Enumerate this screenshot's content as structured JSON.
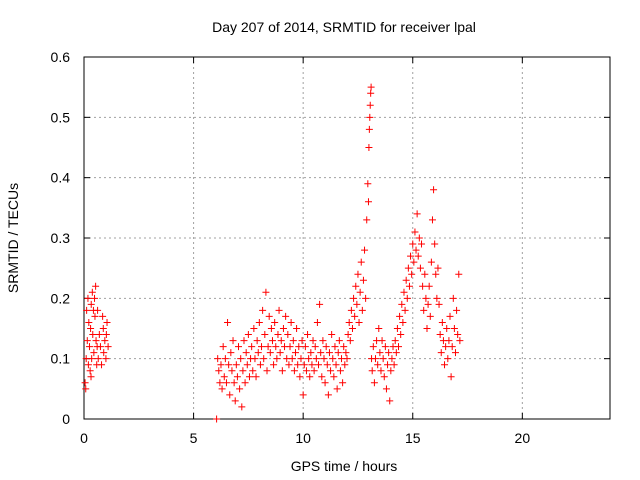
{
  "chart_data": {
    "type": "scatter",
    "title": "Day 207 of 2014, SRMTID for receiver lpal",
    "xlabel": "GPS time / hours",
    "ylabel": "SRMTID / TECUs",
    "xlim": [
      0,
      24
    ],
    "ylim": [
      0,
      0.6
    ],
    "xticks": [
      0,
      5,
      10,
      15,
      20
    ],
    "yticks": [
      0,
      0.1,
      0.2,
      0.3,
      0.4,
      0.5,
      0.6
    ],
    "xtick_labels": [
      "0",
      "5",
      "10",
      "15",
      "20"
    ],
    "ytick_labels": [
      "0",
      "0.1",
      "0.2",
      "0.3",
      "0.4",
      "0.5",
      "0.6"
    ],
    "grid": true,
    "marker": "+",
    "color": "#ff0000",
    "series": [
      {
        "name": "SRMTID",
        "points": [
          [
            0.05,
            0.06
          ],
          [
            0.1,
            0.1
          ],
          [
            0.12,
            0.18
          ],
          [
            0.15,
            0.13
          ],
          [
            0.18,
            0.2
          ],
          [
            0.2,
            0.09
          ],
          [
            0.22,
            0.16
          ],
          [
            0.25,
            0.12
          ],
          [
            0.28,
            0.08
          ],
          [
            0.3,
            0.15
          ],
          [
            0.33,
            0.19
          ],
          [
            0.35,
            0.1
          ],
          [
            0.38,
            0.21
          ],
          [
            0.4,
            0.14
          ],
          [
            0.43,
            0.18
          ],
          [
            0.45,
            0.11
          ],
          [
            0.48,
            0.2
          ],
          [
            0.5,
            0.17
          ],
          [
            0.53,
            0.22
          ],
          [
            0.55,
            0.13
          ],
          [
            0.58,
            0.09
          ],
          [
            0.6,
            0.12
          ],
          [
            0.65,
            0.1
          ],
          [
            0.7,
            0.14
          ],
          [
            0.75,
            0.12
          ],
          [
            0.8,
            0.09
          ],
          [
            0.85,
            0.17
          ],
          [
            0.9,
            0.11
          ],
          [
            0.95,
            0.13
          ],
          [
            1.0,
            0.1
          ],
          [
            1.05,
            0.16
          ],
          [
            1.1,
            0.12
          ],
          [
            0.08,
            0.05
          ],
          [
            0.32,
            0.07
          ],
          [
            0.62,
            0.18
          ],
          [
            0.88,
            0.15
          ],
          [
            1.02,
            0.14
          ],
          [
            6.05,
            0.0
          ],
          [
            6.1,
            0.1
          ],
          [
            6.15,
            0.08
          ],
          [
            6.2,
            0.06
          ],
          [
            6.25,
            0.09
          ],
          [
            6.3,
            0.05
          ],
          [
            6.35,
            0.12
          ],
          [
            6.4,
            0.07
          ],
          [
            6.45,
            0.1
          ],
          [
            6.5,
            0.06
          ],
          [
            6.55,
            0.16
          ],
          [
            6.6,
            0.09
          ],
          [
            6.65,
            0.04
          ],
          [
            6.7,
            0.11
          ],
          [
            6.75,
            0.08
          ],
          [
            6.8,
            0.13
          ],
          [
            6.85,
            0.06
          ],
          [
            6.9,
            0.03
          ],
          [
            6.95,
            0.09
          ],
          [
            7.0,
            0.07
          ],
          [
            7.05,
            0.12
          ],
          [
            7.1,
            0.05
          ],
          [
            7.15,
            0.1
          ],
          [
            7.2,
            0.02
          ],
          [
            7.25,
            0.08
          ],
          [
            7.3,
            0.13
          ],
          [
            7.35,
            0.06
          ],
          [
            7.4,
            0.11
          ],
          [
            7.45,
            0.09
          ],
          [
            7.5,
            0.14
          ],
          [
            7.55,
            0.07
          ],
          [
            7.6,
            0.1
          ],
          [
            7.65,
            0.12
          ],
          [
            7.7,
            0.08
          ],
          [
            7.75,
            0.15
          ],
          [
            7.8,
            0.1
          ],
          [
            7.85,
            0.07
          ],
          [
            7.9,
            0.13
          ],
          [
            7.95,
            0.11
          ],
          [
            8.0,
            0.16
          ],
          [
            8.05,
            0.09
          ],
          [
            8.1,
            0.12
          ],
          [
            8.15,
            0.18
          ],
          [
            8.2,
            0.1
          ],
          [
            8.25,
            0.14
          ],
          [
            8.3,
            0.21
          ],
          [
            8.35,
            0.08
          ],
          [
            8.4,
            0.12
          ],
          [
            8.45,
            0.17
          ],
          [
            8.5,
            0.11
          ],
          [
            8.55,
            0.15
          ],
          [
            8.6,
            0.13
          ],
          [
            8.65,
            0.09
          ],
          [
            8.7,
            0.16
          ],
          [
            8.75,
            0.12
          ],
          [
            8.8,
            0.1
          ],
          [
            8.85,
            0.14
          ],
          [
            8.9,
            0.18
          ],
          [
            8.95,
            0.11
          ],
          [
            9.0,
            0.13
          ],
          [
            9.05,
            0.08
          ],
          [
            9.1,
            0.15
          ],
          [
            9.15,
            0.12
          ],
          [
            9.2,
            0.17
          ],
          [
            9.25,
            0.1
          ],
          [
            9.3,
            0.14
          ],
          [
            9.35,
            0.09
          ],
          [
            9.4,
            0.12
          ],
          [
            9.45,
            0.16
          ],
          [
            9.5,
            0.1
          ],
          [
            9.55,
            0.13
          ],
          [
            9.6,
            0.08
          ],
          [
            9.65,
            0.11
          ],
          [
            9.7,
            0.15
          ],
          [
            9.75,
            0.09
          ],
          [
            9.8,
            0.12
          ],
          [
            9.85,
            0.07
          ],
          [
            9.9,
            0.1
          ],
          [
            9.95,
            0.13
          ],
          [
            10.0,
            0.04
          ],
          [
            10.05,
            0.09
          ],
          [
            10.1,
            0.12
          ],
          [
            10.15,
            0.08
          ],
          [
            10.2,
            0.14
          ],
          [
            10.25,
            0.1
          ],
          [
            10.3,
            0.07
          ],
          [
            10.35,
            0.11
          ],
          [
            10.4,
            0.09
          ],
          [
            10.45,
            0.13
          ],
          [
            10.5,
            0.08
          ],
          [
            10.55,
            0.12
          ],
          [
            10.6,
            0.1
          ],
          [
            10.65,
            0.16
          ],
          [
            10.7,
            0.09
          ],
          [
            10.75,
            0.19
          ],
          [
            10.8,
            0.11
          ],
          [
            10.85,
            0.07
          ],
          [
            10.9,
            0.13
          ],
          [
            10.95,
            0.1
          ],
          [
            11.0,
            0.06
          ],
          [
            11.05,
            0.12
          ],
          [
            11.1,
            0.09
          ],
          [
            11.15,
            0.04
          ],
          [
            11.2,
            0.11
          ],
          [
            11.25,
            0.08
          ],
          [
            11.3,
            0.14
          ],
          [
            11.35,
            0.1
          ],
          [
            11.4,
            0.07
          ],
          [
            11.45,
            0.12
          ],
          [
            11.5,
            0.09
          ],
          [
            11.55,
            0.05
          ],
          [
            11.6,
            0.11
          ],
          [
            11.65,
            0.13
          ],
          [
            11.7,
            0.08
          ],
          [
            11.75,
            0.1
          ],
          [
            11.8,
            0.06
          ],
          [
            11.85,
            0.12
          ],
          [
            11.9,
            0.09
          ],
          [
            11.95,
            0.11
          ],
          [
            12.0,
            0.1
          ],
          [
            12.05,
            0.14
          ],
          [
            12.1,
            0.16
          ],
          [
            12.15,
            0.13
          ],
          [
            12.2,
            0.18
          ],
          [
            12.25,
            0.15
          ],
          [
            12.3,
            0.2
          ],
          [
            12.35,
            0.17
          ],
          [
            12.4,
            0.22
          ],
          [
            12.45,
            0.19
          ],
          [
            12.5,
            0.24
          ],
          [
            12.55,
            0.16
          ],
          [
            12.6,
            0.21
          ],
          [
            12.65,
            0.26
          ],
          [
            12.7,
            0.18
          ],
          [
            12.75,
            0.23
          ],
          [
            12.8,
            0.28
          ],
          [
            12.85,
            0.2
          ],
          [
            12.9,
            0.33
          ],
          [
            12.95,
            0.39
          ],
          [
            13.0,
            0.45
          ],
          [
            13.02,
            0.48
          ],
          [
            13.04,
            0.5
          ],
          [
            13.06,
            0.52
          ],
          [
            13.08,
            0.54
          ],
          [
            13.1,
            0.55
          ],
          [
            12.98,
            0.36
          ],
          [
            13.12,
            0.1
          ],
          [
            13.15,
            0.08
          ],
          [
            13.2,
            0.12
          ],
          [
            13.25,
            0.06
          ],
          [
            13.3,
            0.1
          ],
          [
            13.35,
            0.13
          ],
          [
            13.4,
            0.09
          ],
          [
            13.45,
            0.15
          ],
          [
            13.5,
            0.11
          ],
          [
            13.55,
            0.08
          ],
          [
            13.6,
            0.13
          ],
          [
            13.65,
            0.1
          ],
          [
            13.7,
            0.07
          ],
          [
            13.75,
            0.12
          ],
          [
            13.8,
            0.05
          ],
          [
            13.85,
            0.09
          ],
          [
            13.9,
            0.11
          ],
          [
            13.95,
            0.03
          ],
          [
            14.0,
            0.08
          ],
          [
            14.05,
            0.1
          ],
          [
            14.1,
            0.12
          ],
          [
            14.15,
            0.09
          ],
          [
            14.2,
            0.13
          ],
          [
            14.25,
            0.11
          ],
          [
            14.3,
            0.15
          ],
          [
            14.35,
            0.12
          ],
          [
            14.4,
            0.17
          ],
          [
            14.45,
            0.14
          ],
          [
            14.5,
            0.19
          ],
          [
            14.55,
            0.16
          ],
          [
            14.6,
            0.21
          ],
          [
            14.65,
            0.18
          ],
          [
            14.7,
            0.23
          ],
          [
            14.75,
            0.2
          ],
          [
            14.8,
            0.25
          ],
          [
            14.85,
            0.22
          ],
          [
            14.9,
            0.27
          ],
          [
            14.95,
            0.24
          ],
          [
            15.0,
            0.29
          ],
          [
            15.05,
            0.26
          ],
          [
            15.1,
            0.31
          ],
          [
            15.15,
            0.28
          ],
          [
            15.2,
            0.34
          ],
          [
            15.25,
            0.27
          ],
          [
            15.3,
            0.3
          ],
          [
            15.35,
            0.25
          ],
          [
            15.4,
            0.29
          ],
          [
            15.45,
            0.22
          ],
          [
            15.5,
            0.18
          ],
          [
            15.55,
            0.24
          ],
          [
            15.6,
            0.2
          ],
          [
            15.65,
            0.15
          ],
          [
            15.7,
            0.19
          ],
          [
            15.75,
            0.22
          ],
          [
            15.8,
            0.17
          ],
          [
            15.85,
            0.26
          ],
          [
            15.9,
            0.33
          ],
          [
            15.95,
            0.38
          ],
          [
            16.0,
            0.29
          ],
          [
            16.05,
            0.24
          ],
          [
            16.1,
            0.2
          ],
          [
            16.15,
            0.25
          ],
          [
            16.2,
            0.19
          ],
          [
            16.25,
            0.14
          ],
          [
            16.3,
            0.11
          ],
          [
            16.35,
            0.16
          ],
          [
            16.4,
            0.13
          ],
          [
            16.45,
            0.09
          ],
          [
            16.5,
            0.12
          ],
          [
            16.55,
            0.15
          ],
          [
            16.6,
            0.1
          ],
          [
            16.65,
            0.13
          ],
          [
            16.7,
            0.17
          ],
          [
            16.75,
            0.07
          ],
          [
            16.8,
            0.12
          ],
          [
            16.85,
            0.2
          ],
          [
            16.9,
            0.15
          ],
          [
            16.95,
            0.11
          ],
          [
            17.0,
            0.18
          ],
          [
            17.05,
            0.14
          ],
          [
            17.1,
            0.24
          ],
          [
            17.15,
            0.13
          ]
        ]
      }
    ]
  }
}
